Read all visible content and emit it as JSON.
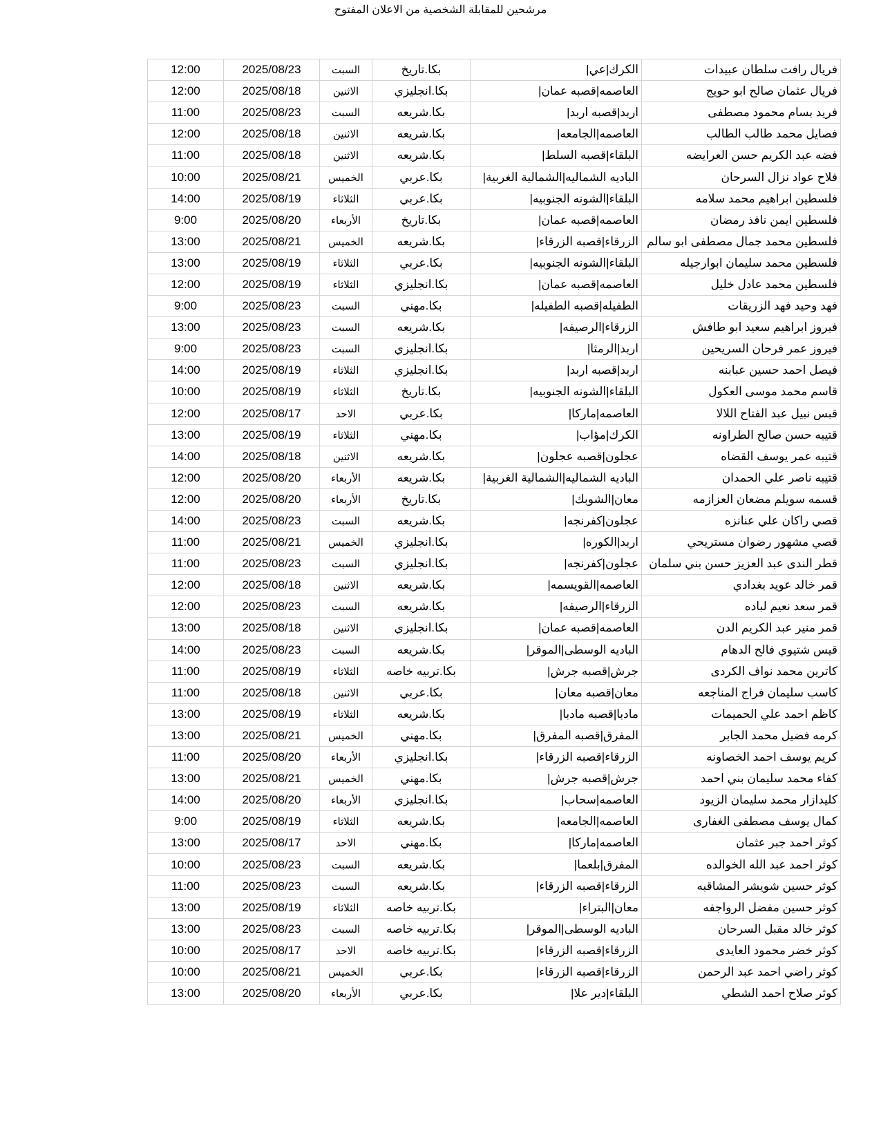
{
  "title": "مرشحين للمقابلة الشخصية من الاعلان المفتوح",
  "rows": [
    [
      "فريال رافت سلطان عبيدات",
      "الكرك|عي|",
      "بكا.تاريخ",
      "السبت",
      "2025/08/23",
      "12:00"
    ],
    [
      "فريال عثمان صالح ابو حويج",
      "العاصمه|قصبه عمان|",
      "بكا.انجليزي",
      "الاثنين",
      "2025/08/18",
      "12:00"
    ],
    [
      "فريد بسام محمود مصطفى",
      "اربد|قصبه اربد|",
      "بكا.شريعه",
      "السبت",
      "2025/08/23",
      "11:00"
    ],
    [
      "فصايل محمد طالب الطالب",
      "العاصمه|الجامعه|",
      "بكا.شريعه",
      "الاثنين",
      "2025/08/18",
      "12:00"
    ],
    [
      "فضه عبد الكريم حسن العرايضه",
      "البلقاء|قصبه السلط|",
      "بكا.شريعه",
      "الاثنين",
      "2025/08/18",
      "11:00"
    ],
    [
      "فلاح عواد نزال السرحان",
      "الباديه الشماليه|الشمالية الغربية|",
      "بكا.عربي",
      "الخميس",
      "2025/08/21",
      "10:00"
    ],
    [
      "فلسطين ابراهيم محمد سلامه",
      "البلقاء|الشونه الجنوبيه|",
      "بكا.عربي",
      "الثلاثاء",
      "2025/08/19",
      "14:00"
    ],
    [
      "فلسطين ايمن نافذ رمضان",
      "العاصمه|قصبه عمان|",
      "بكا.تاريخ",
      "الأربعاء",
      "2025/08/20",
      "9:00"
    ],
    [
      "فلسطين محمد جمال مصطفى ابو سالم",
      "الزرقاء|قصبه الزرقاء|",
      "بكا.شريعه",
      "الخميس",
      "2025/08/21",
      "13:00"
    ],
    [
      "فلسطين محمد سليمان ابوارجيله",
      "البلقاء|الشونه الجنوبيه|",
      "بكا.عربي",
      "الثلاثاء",
      "2025/08/19",
      "13:00"
    ],
    [
      "فلسطين محمد عادل خليل",
      "العاصمه|قصبه عمان|",
      "بكا.انجليزي",
      "الثلاثاء",
      "2025/08/19",
      "12:00"
    ],
    [
      "فهد وحيد فهد الزريقات",
      "الطفيله|قصبه الطفيله|",
      "بكا.مهني",
      "السبت",
      "2025/08/23",
      "9:00"
    ],
    [
      "فيروز ابراهيم سعيد ابو طافش",
      "الزرقاء|الرصيفه|",
      "بكا.شريعه",
      "السبت",
      "2025/08/23",
      "13:00"
    ],
    [
      "فيروز عمر فرحان السريحين",
      "اربد|الرمثا|",
      "بكا.انجليزي",
      "السبت",
      "2025/08/23",
      "9:00"
    ],
    [
      "فيصل احمد حسين عبابنه",
      "اربد|قصبه اربد|",
      "بكا.انجليزي",
      "الثلاثاء",
      "2025/08/19",
      "14:00"
    ],
    [
      "قاسم محمد موسى العكول",
      "البلقاء|الشونه الجنوبيه|",
      "بكا.تاريخ",
      "الثلاثاء",
      "2025/08/19",
      "10:00"
    ],
    [
      "قبس نبيل عبد الفتاح اللالا",
      "العاصمه|ماركا|",
      "بكا.عربي",
      "الاحد",
      "2025/08/17",
      "12:00"
    ],
    [
      "قتيبه حسن صالح الطراونه",
      "الكرك|مؤاب|",
      "بكا.مهني",
      "الثلاثاء",
      "2025/08/19",
      "13:00"
    ],
    [
      "قتيبه عمر يوسف القضاه",
      "عجلون|قصبه عجلون|",
      "بكا.شريعه",
      "الاثنين",
      "2025/08/18",
      "14:00"
    ],
    [
      "قتيبه ناصر علي الحمدان",
      "الباديه الشماليه|الشمالية الغربية|",
      "بكا.شريعه",
      "الأربعاء",
      "2025/08/20",
      "12:00"
    ],
    [
      "قسمه سويلم مضعان العزازمه",
      "معان|الشوبك|",
      "بكا.تاريخ",
      "الأربعاء",
      "2025/08/20",
      "12:00"
    ],
    [
      "قصي راكان علي عنانزه",
      "عجلون|كفرنجه|",
      "بكا.شريعه",
      "السبت",
      "2025/08/23",
      "14:00"
    ],
    [
      "قصي مشهور رضوان مستريحي",
      "اربد|الكوره|",
      "بكا.انجليزي",
      "الخميس",
      "2025/08/21",
      "11:00"
    ],
    [
      "قطر الندى عبد العزيز حسن بني  سلمان",
      "عجلون|كفرنجه|",
      "بكا.انجليزي",
      "السبت",
      "2025/08/23",
      "11:00"
    ],
    [
      "قمر خالد عويد بغدادي",
      "العاصمه|القويسمه|",
      "بكا.شريعه",
      "الاثنين",
      "2025/08/18",
      "12:00"
    ],
    [
      "قمر سعد نعيم لباده",
      "الزرقاء|الرصيفه|",
      "بكا.شريعه",
      "السبت",
      "2025/08/23",
      "12:00"
    ],
    [
      "قمر منير عبد الكريم الدن",
      "العاصمه|قصبه عمان|",
      "بكا.انجليزي",
      "الاثنين",
      "2025/08/18",
      "13:00"
    ],
    [
      "قيس شتيوي فالح الدهام",
      "الباديه الوسطى|الموقر|",
      "بكا.شريعه",
      "السبت",
      "2025/08/23",
      "14:00"
    ],
    [
      "كاترين محمد نواف الكردى",
      "جرش|قصبه جرش|",
      "بكا.تربيه خاصه",
      "الثلاثاء",
      "2025/08/19",
      "11:00"
    ],
    [
      "كاسب سليمان فراج المناجعه",
      "معان|قصبه معان|",
      "بكا.عربي",
      "الاثنين",
      "2025/08/18",
      "11:00"
    ],
    [
      "كاظم احمد علي الحميمات",
      "مادبا|قصبه مادبا|",
      "بكا.شريعه",
      "الثلاثاء",
      "2025/08/19",
      "13:00"
    ],
    [
      "كرمه فضيل محمد الجابر",
      "المفرق|قصبه المفرق|",
      "بكا.مهني",
      "الخميس",
      "2025/08/21",
      "13:00"
    ],
    [
      "كريم يوسف احمد الخصاونه",
      "الزرقاء|قصبه الزرقاء|",
      "بكا.انجليزي",
      "الأربعاء",
      "2025/08/20",
      "11:00"
    ],
    [
      "كفاء محمد سليمان بني احمد",
      "جرش|قصبه جرش|",
      "بكا.مهني",
      "الخميس",
      "2025/08/21",
      "13:00"
    ],
    [
      "كليدازار محمد سليمان الزيود",
      "العاصمه|سحاب|",
      "بكا.انجليزي",
      "الأربعاء",
      "2025/08/20",
      "14:00"
    ],
    [
      "كمال يوسف مصطفى الغفارى",
      "العاصمه|الجامعه|",
      "بكا.شريعه",
      "الثلاثاء",
      "2025/08/19",
      "9:00"
    ],
    [
      "كوثر احمد جبر عثمان",
      "العاصمه|ماركا|",
      "بكا.مهني",
      "الاحد",
      "2025/08/17",
      "13:00"
    ],
    [
      "كوثر احمد عبد الله الخوالده",
      "المفرق|بلعما|",
      "بكا.شريعه",
      "السبت",
      "2025/08/23",
      "10:00"
    ],
    [
      "كوثر حسين شويشر المشاقبه",
      "الزرقاء|قصبه الزرقاء|",
      "بكا.شريعه",
      "السبت",
      "2025/08/23",
      "11:00"
    ],
    [
      "كوثر حسين مفضل الرواجفه",
      "معان|البتراء|",
      "بكا.تربيه خاصه",
      "الثلاثاء",
      "2025/08/19",
      "13:00"
    ],
    [
      "كوثر خالد مقبل السرحان",
      "الباديه الوسطى|الموقر|",
      "بكا.تربيه خاصه",
      "السبت",
      "2025/08/23",
      "13:00"
    ],
    [
      "كوثر خضر محمود العايدى",
      "الزرقاء|قصبه الزرقاء|",
      "بكا.تربيه خاصه",
      "الاحد",
      "2025/08/17",
      "10:00"
    ],
    [
      "كوثر راضي احمد عبد الرحمن",
      "الزرقاء|قصبه الزرقاء|",
      "بكا.عربي",
      "الخميس",
      "2025/08/21",
      "10:00"
    ],
    [
      "كوثر صلاح احمد الشطي",
      "البلقاء|دير علا|",
      "بكا.عربي",
      "الأربعاء",
      "2025/08/20",
      "13:00"
    ]
  ]
}
